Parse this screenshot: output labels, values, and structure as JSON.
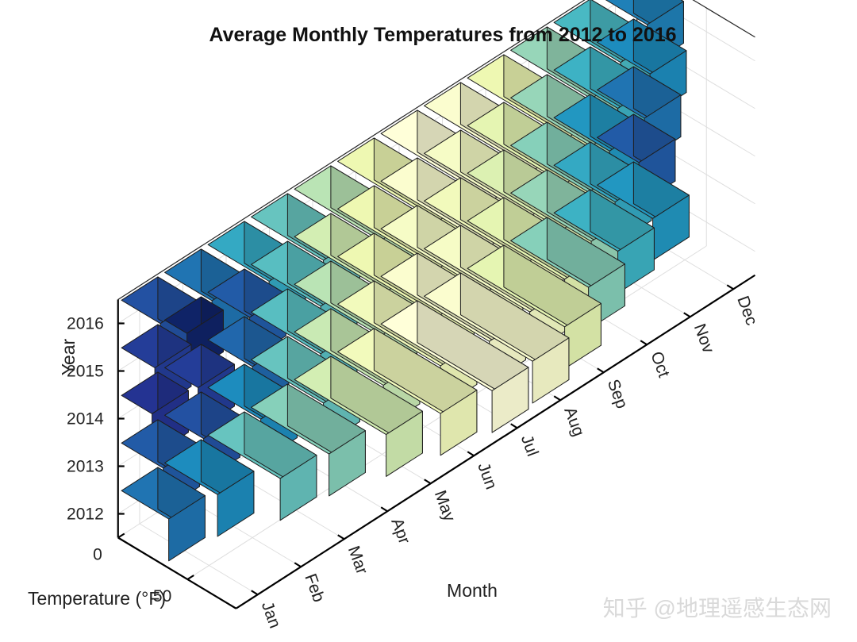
{
  "chart_data": {
    "type": "bar3",
    "title": "Average Monthly Temperatures from 2012 to 2016",
    "xlabel": "Month",
    "ylabel": "Year",
    "zlabel": "Temperature (°F)",
    "categories": [
      "Jan",
      "Feb",
      "Mar",
      "Apr",
      "May",
      "Jun",
      "Jul",
      "Aug",
      "Sep",
      "Oct",
      "Nov",
      "Dec"
    ],
    "years": [
      "2012",
      "2013",
      "2014",
      "2015",
      "2016"
    ],
    "temperature_ticks": [
      "0",
      "50"
    ],
    "temperature_range": [
      0,
      85
    ],
    "colormap": [
      "#081d58",
      "#253494",
      "#225ea8",
      "#1d91c0",
      "#41b6c4",
      "#7fcdbb",
      "#c7e9b4",
      "#edf8b1",
      "#ffffd9"
    ],
    "series": [
      {
        "name": "2012",
        "values": [
          34,
          38,
          52,
          56,
          66,
          74,
          80,
          78,
          70,
          56,
          46,
          40
        ]
      },
      {
        "name": "2013",
        "values": [
          30,
          28,
          38,
          52,
          64,
          74,
          78,
          76,
          70,
          58,
          44,
          30
        ]
      },
      {
        "name": "2014",
        "values": [
          22,
          24,
          32,
          50,
          62,
          72,
          76,
          74,
          68,
          56,
          40,
          34
        ]
      },
      {
        "name": "2015",
        "values": [
          24,
          16,
          30,
          50,
          66,
          72,
          78,
          76,
          70,
          58,
          46,
          38
        ]
      },
      {
        "name": "2016",
        "values": [
          28,
          34,
          44,
          52,
          62,
          72,
          80,
          78,
          72,
          58,
          48,
          36
        ]
      }
    ]
  },
  "watermark": "知乎 @地理遥感生态网"
}
